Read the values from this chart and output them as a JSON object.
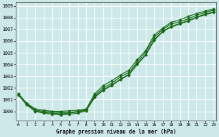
{
  "xlabel": "Graphe pression niveau de la mer (hPa)",
  "ylim": [
    999.2,
    1009.3
  ],
  "xlim": [
    -0.3,
    23.3
  ],
  "yticks": [
    1000,
    1001,
    1002,
    1003,
    1004,
    1005,
    1006,
    1007,
    1008,
    1009
  ],
  "xticks": [
    0,
    1,
    2,
    3,
    4,
    5,
    6,
    7,
    8,
    9,
    10,
    11,
    12,
    13,
    14,
    15,
    16,
    17,
    18,
    19,
    20,
    21,
    22,
    23
  ],
  "bg_color": "#cce8e8",
  "grid_color": "#ffffff",
  "line_color": "#1a6b1a",
  "series": [
    [
      1001.5,
      1000.7,
      1000.2,
      1000.1,
      1000.0,
      1000.0,
      1000.05,
      1000.1,
      1000.2,
      1001.5,
      1002.2,
      1002.6,
      1003.1,
      1003.5,
      1004.4,
      1005.2,
      1006.5,
      1007.1,
      1007.6,
      1007.8,
      1008.1,
      1008.35,
      1008.55,
      1008.75
    ],
    [
      1001.5,
      1000.65,
      1000.1,
      1000.0,
      999.95,
      999.9,
      999.9,
      1000.0,
      1000.15,
      1001.35,
      1002.0,
      1002.4,
      1002.95,
      1003.3,
      1004.2,
      1005.05,
      1006.3,
      1007.0,
      1007.45,
      1007.65,
      1007.9,
      1008.2,
      1008.45,
      1008.65
    ],
    [
      1001.5,
      1000.6,
      1000.05,
      999.9,
      999.85,
      999.8,
      999.85,
      999.95,
      1000.1,
      1001.25,
      1001.85,
      1002.25,
      1002.75,
      1003.15,
      1004.05,
      1004.85,
      1006.1,
      1006.85,
      1007.25,
      1007.5,
      1007.75,
      1008.05,
      1008.3,
      1008.5
    ],
    [
      1001.4,
      1000.55,
      1000.0,
      999.85,
      999.75,
      999.7,
      999.75,
      999.85,
      1000.05,
      1001.2,
      1001.8,
      1002.2,
      1002.7,
      1003.1,
      1004.0,
      1004.8,
      1006.05,
      1006.8,
      1007.2,
      1007.45,
      1007.7,
      1008.0,
      1008.25,
      1008.45
    ]
  ]
}
